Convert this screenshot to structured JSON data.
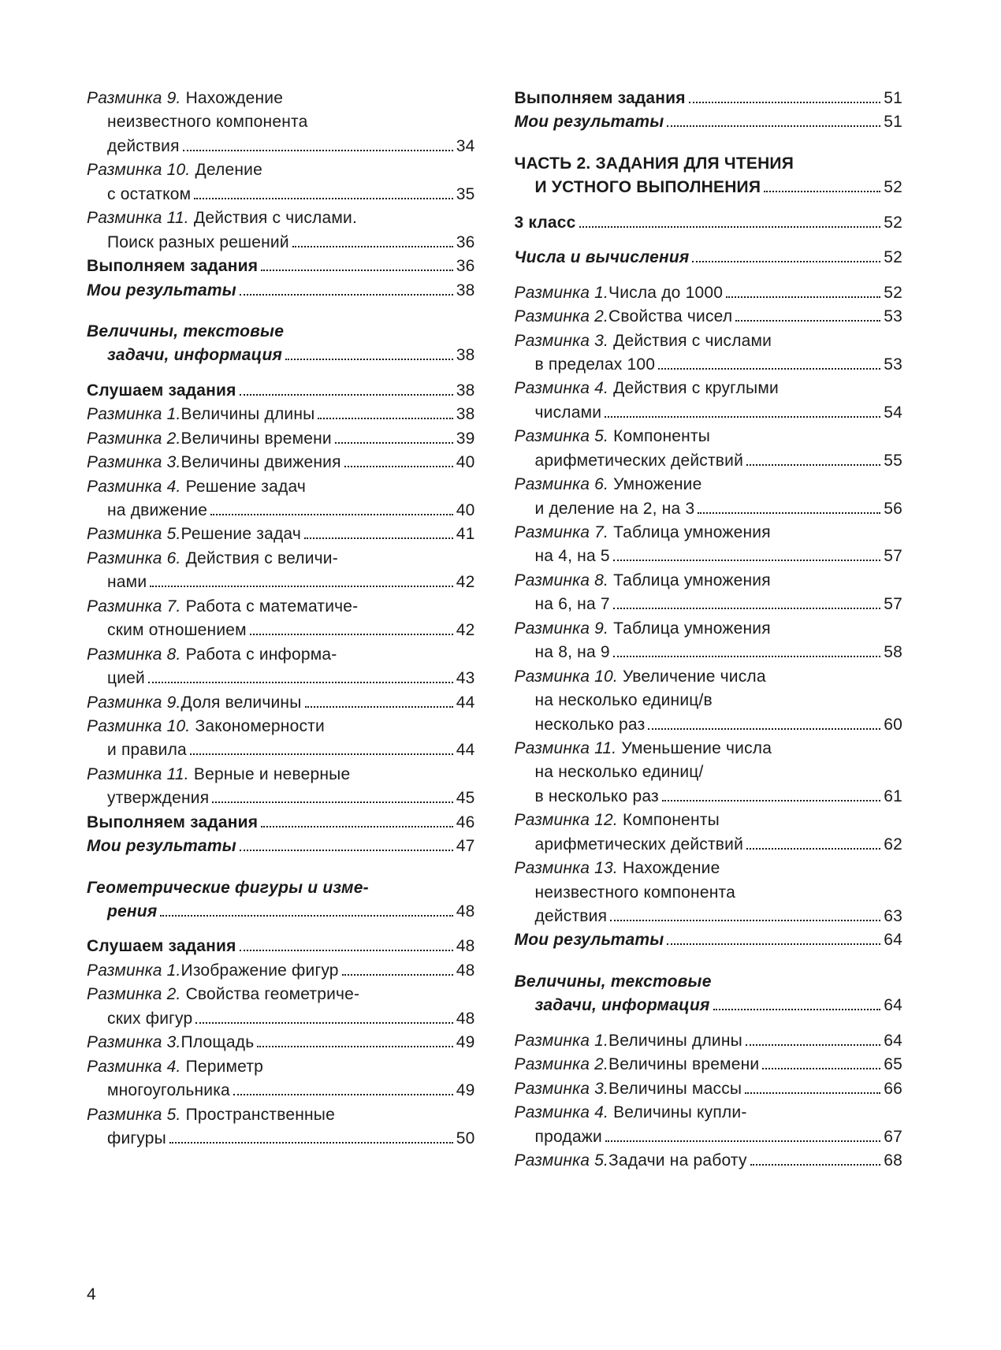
{
  "pageNumber": "4",
  "leftColumn": [
    {
      "type": "wrap",
      "parts": [
        {
          "t": "Разминка 9.",
          "s": "ital"
        },
        {
          "t": " Нахождение",
          "s": ""
        }
      ]
    },
    {
      "type": "wrap",
      "indent": true,
      "parts": [
        {
          "t": "неизвестного компонента",
          "s": ""
        }
      ]
    },
    {
      "type": "line",
      "indent": true,
      "parts": [
        {
          "t": "действия",
          "s": ""
        }
      ],
      "page": "34"
    },
    {
      "type": "wrap",
      "parts": [
        {
          "t": "Разминка 10.",
          "s": "ital"
        },
        {
          "t": " Деление",
          "s": ""
        }
      ]
    },
    {
      "type": "line",
      "indent": true,
      "parts": [
        {
          "t": "с остатком",
          "s": ""
        }
      ],
      "page": "35"
    },
    {
      "type": "wrap",
      "parts": [
        {
          "t": "Разминка 11.",
          "s": "ital"
        },
        {
          "t": " Действия с числами.",
          "s": ""
        }
      ]
    },
    {
      "type": "line",
      "indent": true,
      "parts": [
        {
          "t": "Поиск разных решений",
          "s": ""
        }
      ],
      "page": "36"
    },
    {
      "type": "line",
      "parts": [
        {
          "t": "Выполняем задания",
          "s": "bold"
        }
      ],
      "page": "36"
    },
    {
      "type": "line",
      "parts": [
        {
          "t": "Мои результаты",
          "s": "bi"
        }
      ],
      "page": "38"
    },
    {
      "type": "gap",
      "size": "md"
    },
    {
      "type": "wrap",
      "parts": [
        {
          "t": "Величины, текстовые",
          "s": "bi"
        }
      ]
    },
    {
      "type": "line",
      "indent": true,
      "parts": [
        {
          "t": "задачи, информация",
          "s": "bi"
        }
      ],
      "page": "38"
    },
    {
      "type": "gap",
      "size": "sm"
    },
    {
      "type": "line",
      "parts": [
        {
          "t": "Слушаем задания",
          "s": "bold"
        }
      ],
      "page": "38"
    },
    {
      "type": "line",
      "parts": [
        {
          "t": "Разминка 1.",
          "s": "ital"
        },
        {
          "t": " Величины длины",
          "s": ""
        }
      ],
      "page": "38"
    },
    {
      "type": "line",
      "parts": [
        {
          "t": "Разминка 2.",
          "s": "ital"
        },
        {
          "t": " Величины времени",
          "s": ""
        }
      ],
      "page": "39"
    },
    {
      "type": "line",
      "parts": [
        {
          "t": "Разминка 3.",
          "s": "ital"
        },
        {
          "t": " Величины движения",
          "s": ""
        }
      ],
      "page": "40"
    },
    {
      "type": "wrap",
      "parts": [
        {
          "t": "Разминка 4.",
          "s": "ital"
        },
        {
          "t": " Решение задач",
          "s": ""
        }
      ]
    },
    {
      "type": "line",
      "indent": true,
      "parts": [
        {
          "t": "на движение",
          "s": ""
        }
      ],
      "page": "40"
    },
    {
      "type": "line",
      "parts": [
        {
          "t": "Разминка 5.",
          "s": "ital"
        },
        {
          "t": " Решение задач",
          "s": ""
        }
      ],
      "page": "41"
    },
    {
      "type": "wrap",
      "parts": [
        {
          "t": "Разминка 6.",
          "s": "ital"
        },
        {
          "t": " Действия с величи-",
          "s": ""
        }
      ]
    },
    {
      "type": "line",
      "indent": true,
      "parts": [
        {
          "t": "нами",
          "s": ""
        }
      ],
      "page": "42"
    },
    {
      "type": "wrap",
      "parts": [
        {
          "t": "Разминка 7.",
          "s": "ital"
        },
        {
          "t": " Работа с математиче-",
          "s": ""
        }
      ]
    },
    {
      "type": "line",
      "indent": true,
      "parts": [
        {
          "t": "ским отношением",
          "s": ""
        }
      ],
      "page": "42"
    },
    {
      "type": "wrap",
      "parts": [
        {
          "t": "Разминка 8.",
          "s": "ital"
        },
        {
          "t": " Работа с информа-",
          "s": ""
        }
      ]
    },
    {
      "type": "line",
      "indent": true,
      "parts": [
        {
          "t": "цией",
          "s": ""
        }
      ],
      "page": "43"
    },
    {
      "type": "line",
      "parts": [
        {
          "t": "Разминка 9.",
          "s": "ital"
        },
        {
          "t": " Доля величины",
          "s": ""
        }
      ],
      "page": "44"
    },
    {
      "type": "wrap",
      "parts": [
        {
          "t": "Разминка 10.",
          "s": "ital"
        },
        {
          "t": " Закономерности",
          "s": ""
        }
      ]
    },
    {
      "type": "line",
      "indent": true,
      "parts": [
        {
          "t": "и правила",
          "s": ""
        }
      ],
      "page": "44"
    },
    {
      "type": "wrap",
      "parts": [
        {
          "t": "Разминка 11.",
          "s": "ital"
        },
        {
          "t": " Верные и неверные",
          "s": ""
        }
      ]
    },
    {
      "type": "line",
      "indent": true,
      "parts": [
        {
          "t": "утверждения",
          "s": ""
        }
      ],
      "page": "45"
    },
    {
      "type": "line",
      "parts": [
        {
          "t": "Выполняем задания",
          "s": "bold"
        }
      ],
      "page": "46"
    },
    {
      "type": "line",
      "parts": [
        {
          "t": "Мои результаты",
          "s": "bi"
        }
      ],
      "page": "47"
    },
    {
      "type": "gap",
      "size": "md"
    },
    {
      "type": "wrap",
      "parts": [
        {
          "t": "Геометрические фигуры и изме-",
          "s": "bi"
        }
      ]
    },
    {
      "type": "line",
      "indent": true,
      "parts": [
        {
          "t": "рения",
          "s": "bi"
        }
      ],
      "page": "48"
    },
    {
      "type": "gap",
      "size": "sm"
    },
    {
      "type": "line",
      "parts": [
        {
          "t": "Слушаем задания",
          "s": "bold"
        }
      ],
      "page": "48"
    },
    {
      "type": "line",
      "parts": [
        {
          "t": "Разминка 1.",
          "s": "ital"
        },
        {
          "t": " Изображение фигур",
          "s": ""
        }
      ],
      "page": "48"
    },
    {
      "type": "wrap",
      "parts": [
        {
          "t": "Разминка 2.",
          "s": "ital"
        },
        {
          "t": " Свойства геометриче-",
          "s": ""
        }
      ]
    },
    {
      "type": "line",
      "indent": true,
      "parts": [
        {
          "t": "ских фигур",
          "s": ""
        }
      ],
      "page": "48"
    },
    {
      "type": "line",
      "parts": [
        {
          "t": "Разминка 3.",
          "s": "ital"
        },
        {
          "t": " Площадь",
          "s": ""
        }
      ],
      "page": "49"
    },
    {
      "type": "wrap",
      "parts": [
        {
          "t": "Разминка 4.",
          "s": "ital"
        },
        {
          "t": " Периметр",
          "s": ""
        }
      ]
    },
    {
      "type": "line",
      "indent": true,
      "parts": [
        {
          "t": "многоугольника",
          "s": ""
        }
      ],
      "page": "49"
    },
    {
      "type": "wrap",
      "parts": [
        {
          "t": "Разминка 5.",
          "s": "ital"
        },
        {
          "t": " Пространственные",
          "s": ""
        }
      ]
    },
    {
      "type": "line",
      "indent": true,
      "parts": [
        {
          "t": "фигуры",
          "s": ""
        }
      ],
      "page": "50"
    }
  ],
  "rightColumn": [
    {
      "type": "line",
      "parts": [
        {
          "t": "Выполняем задания",
          "s": "bold"
        }
      ],
      "page": "51"
    },
    {
      "type": "line",
      "parts": [
        {
          "t": "Мои результаты",
          "s": "bi"
        }
      ],
      "page": "51"
    },
    {
      "type": "gap",
      "size": "md"
    },
    {
      "type": "wrap",
      "parts": [
        {
          "t": "ЧАСТЬ 2. ЗАДАНИЯ ДЛЯ ЧТЕНИЯ",
          "s": "bold"
        }
      ]
    },
    {
      "type": "line",
      "indent": true,
      "parts": [
        {
          "t": "И УСТНОГО ВЫПОЛНЕНИЯ",
          "s": "bold"
        }
      ],
      "page": "52"
    },
    {
      "type": "gap",
      "size": "sm"
    },
    {
      "type": "line",
      "parts": [
        {
          "t": "3 класс",
          "s": "bold"
        }
      ],
      "page": "52"
    },
    {
      "type": "gap",
      "size": "sm"
    },
    {
      "type": "line",
      "parts": [
        {
          "t": "Числа и вычисления",
          "s": "bi"
        }
      ],
      "page": "52"
    },
    {
      "type": "gap",
      "size": "sm"
    },
    {
      "type": "line",
      "parts": [
        {
          "t": "Разминка 1.",
          "s": "ital"
        },
        {
          "t": " Числа до 1000",
          "s": ""
        }
      ],
      "page": "52"
    },
    {
      "type": "line",
      "parts": [
        {
          "t": "Разминка 2.",
          "s": "ital"
        },
        {
          "t": " Свойства чисел",
          "s": ""
        }
      ],
      "page": "53"
    },
    {
      "type": "wrap",
      "parts": [
        {
          "t": "Разминка 3.",
          "s": "ital"
        },
        {
          "t": " Действия с числами",
          "s": ""
        }
      ]
    },
    {
      "type": "line",
      "indent": true,
      "parts": [
        {
          "t": "в пределах 100",
          "s": ""
        }
      ],
      "page": "53"
    },
    {
      "type": "wrap",
      "parts": [
        {
          "t": "Разминка 4.",
          "s": "ital"
        },
        {
          "t": " Действия с круглыми",
          "s": ""
        }
      ]
    },
    {
      "type": "line",
      "indent": true,
      "parts": [
        {
          "t": "числами",
          "s": ""
        }
      ],
      "page": "54"
    },
    {
      "type": "wrap",
      "parts": [
        {
          "t": "Разминка 5.",
          "s": "ital"
        },
        {
          "t": " Компоненты",
          "s": ""
        }
      ]
    },
    {
      "type": "line",
      "indent": true,
      "parts": [
        {
          "t": "арифметических действий",
          "s": ""
        }
      ],
      "page": "55"
    },
    {
      "type": "wrap",
      "parts": [
        {
          "t": "Разминка 6.",
          "s": "ital"
        },
        {
          "t": " Умножение",
          "s": ""
        }
      ]
    },
    {
      "type": "line",
      "indent": true,
      "parts": [
        {
          "t": "и деление на 2, на 3",
          "s": ""
        }
      ],
      "page": "56"
    },
    {
      "type": "wrap",
      "parts": [
        {
          "t": "Разминка 7.",
          "s": "ital"
        },
        {
          "t": " Таблица умножения",
          "s": ""
        }
      ]
    },
    {
      "type": "line",
      "indent": true,
      "parts": [
        {
          "t": "на 4, на 5",
          "s": ""
        }
      ],
      "page": "57"
    },
    {
      "type": "wrap",
      "parts": [
        {
          "t": "Разминка 8.",
          "s": "ital"
        },
        {
          "t": " Таблица умножения",
          "s": ""
        }
      ]
    },
    {
      "type": "line",
      "indent": true,
      "parts": [
        {
          "t": "на 6, на 7",
          "s": ""
        }
      ],
      "page": "57"
    },
    {
      "type": "wrap",
      "parts": [
        {
          "t": "Разминка 9.",
          "s": "ital"
        },
        {
          "t": " Таблица умножения",
          "s": ""
        }
      ]
    },
    {
      "type": "line",
      "indent": true,
      "parts": [
        {
          "t": "на 8, на 9",
          "s": ""
        }
      ],
      "page": "58"
    },
    {
      "type": "wrap",
      "parts": [
        {
          "t": "Разминка 10.",
          "s": "ital"
        },
        {
          "t": " Увеличение числа",
          "s": ""
        }
      ]
    },
    {
      "type": "wrap",
      "indent": true,
      "parts": [
        {
          "t": "на несколько единиц/в",
          "s": ""
        }
      ]
    },
    {
      "type": "line",
      "indent": true,
      "parts": [
        {
          "t": "несколько раз",
          "s": ""
        }
      ],
      "page": "60"
    },
    {
      "type": "wrap",
      "parts": [
        {
          "t": "Разминка 11.",
          "s": "ital"
        },
        {
          "t": " Уменьшение числа",
          "s": ""
        }
      ]
    },
    {
      "type": "wrap",
      "indent": true,
      "parts": [
        {
          "t": "на несколько единиц/",
          "s": ""
        }
      ]
    },
    {
      "type": "line",
      "indent": true,
      "parts": [
        {
          "t": "в несколько раз",
          "s": ""
        }
      ],
      "page": "61"
    },
    {
      "type": "wrap",
      "parts": [
        {
          "t": "Разминка 12.",
          "s": "ital"
        },
        {
          "t": " Компоненты",
          "s": ""
        }
      ]
    },
    {
      "type": "line",
      "indent": true,
      "parts": [
        {
          "t": "арифметических действий",
          "s": ""
        }
      ],
      "page": "62"
    },
    {
      "type": "wrap",
      "parts": [
        {
          "t": "Разминка 13.",
          "s": "ital"
        },
        {
          "t": " Нахождение",
          "s": ""
        }
      ]
    },
    {
      "type": "wrap",
      "indent": true,
      "parts": [
        {
          "t": "неизвестного компонента",
          "s": ""
        }
      ]
    },
    {
      "type": "line",
      "indent": true,
      "parts": [
        {
          "t": "действия",
          "s": ""
        }
      ],
      "page": "63"
    },
    {
      "type": "line",
      "parts": [
        {
          "t": "Мои результаты",
          "s": "bi"
        }
      ],
      "page": "64"
    },
    {
      "type": "gap",
      "size": "md"
    },
    {
      "type": "wrap",
      "parts": [
        {
          "t": "Величины, текстовые",
          "s": "bi"
        }
      ]
    },
    {
      "type": "line",
      "indent": true,
      "parts": [
        {
          "t": "задачи, информация",
          "s": "bi"
        }
      ],
      "page": "64"
    },
    {
      "type": "gap",
      "size": "sm"
    },
    {
      "type": "line",
      "parts": [
        {
          "t": "Разминка 1.",
          "s": "ital"
        },
        {
          "t": " Величины длины",
          "s": ""
        }
      ],
      "page": "64"
    },
    {
      "type": "line",
      "parts": [
        {
          "t": "Разминка 2.",
          "s": "ital"
        },
        {
          "t": " Величины времени",
          "s": ""
        }
      ],
      "page": "65"
    },
    {
      "type": "line",
      "parts": [
        {
          "t": "Разминка 3.",
          "s": "ital"
        },
        {
          "t": " Величины массы",
          "s": ""
        }
      ],
      "page": "66"
    },
    {
      "type": "wrap",
      "parts": [
        {
          "t": "Разминка 4.",
          "s": "ital"
        },
        {
          "t": " Величины купли-",
          "s": ""
        }
      ]
    },
    {
      "type": "line",
      "indent": true,
      "parts": [
        {
          "t": "продажи",
          "s": ""
        }
      ],
      "page": "67"
    },
    {
      "type": "line",
      "parts": [
        {
          "t": "Разминка 5.",
          "s": "ital"
        },
        {
          "t": " Задачи на работу",
          "s": ""
        }
      ],
      "page": "68"
    }
  ]
}
